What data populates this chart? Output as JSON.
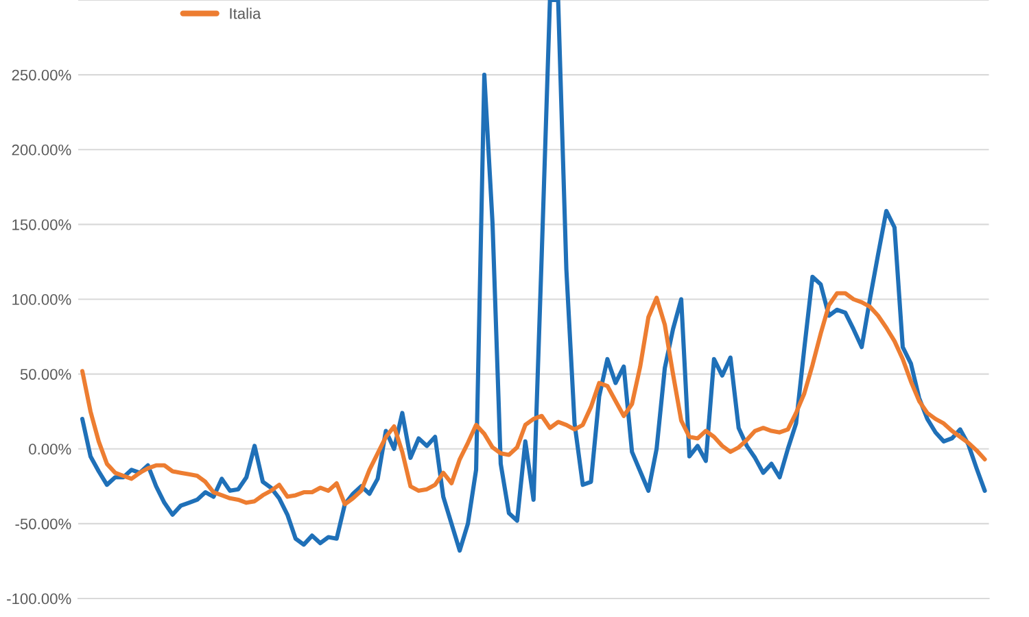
{
  "chart_data": {
    "type": "line",
    "categories": [
      null,
      null,
      null,
      null,
      null,
      null,
      null,
      null,
      null,
      null,
      null,
      null,
      null,
      null,
      null,
      null,
      null,
      null,
      null,
      null,
      null,
      null,
      null,
      null,
      null,
      null,
      null,
      null,
      null,
      null,
      null,
      null,
      null,
      null,
      null,
      null,
      null,
      null,
      null,
      null,
      null,
      null,
      null,
      null,
      null,
      null,
      null,
      null,
      null,
      null,
      null,
      null,
      null,
      null,
      null,
      null,
      null,
      null,
      null,
      null,
      null,
      null,
      null,
      null,
      null,
      null,
      null,
      null,
      null,
      null,
      null,
      null,
      null,
      null,
      null,
      null,
      null,
      null,
      null,
      null,
      null,
      null,
      null,
      null,
      null,
      null,
      null,
      null,
      null,
      null,
      null,
      null,
      null,
      null,
      null,
      null,
      null,
      null,
      null,
      null,
      null,
      null,
      null,
      null,
      null,
      null,
      null,
      null,
      null,
      null,
      null
    ],
    "series": [
      {
        "color": "#1f70b8",
        "values": [
          20,
          -5,
          -15,
          -24,
          -19,
          -19,
          -14,
          -16,
          -11,
          -25,
          -36,
          -44,
          -38,
          -36,
          -34,
          -29,
          -32,
          -20,
          -28,
          -27,
          -19,
          2,
          -22,
          -26,
          -33,
          -44,
          -60,
          -64,
          -58,
          -63,
          -59,
          -60,
          -37,
          -30,
          -25,
          -30,
          -20,
          12,
          0,
          24,
          -6,
          7,
          2,
          8,
          -32,
          -50,
          -68,
          -50,
          -14,
          250,
          151,
          -10,
          -43,
          -48,
          5,
          -34,
          130,
          300,
          300,
          120,
          17,
          -24,
          -22,
          35,
          60,
          44,
          55,
          -2,
          -15,
          -28,
          0,
          54,
          80,
          100,
          -5,
          2,
          -8,
          60,
          49,
          61,
          14,
          2,
          -6,
          -16,
          -10,
          -19,
          0,
          17,
          67,
          115,
          110,
          89,
          93,
          91,
          80,
          68,
          100,
          130,
          159,
          148,
          68,
          57,
          34,
          20,
          11,
          5,
          7,
          13,
          3,
          -13,
          -28
        ]
      },
      {
        "name": "Italia",
        "color": "#ed7d31",
        "values": [
          52,
          25,
          5,
          -10,
          -16,
          -18,
          -20,
          -16,
          -13,
          -11,
          -11,
          -15,
          -16,
          -17,
          -18,
          -22,
          -29,
          -31,
          -33,
          -34,
          -36,
          -35,
          -31,
          -28,
          -24,
          -32,
          -31,
          -29,
          -29,
          -26,
          -28,
          -23,
          -37,
          -33,
          -28,
          -14,
          -3,
          8,
          15,
          -2,
          -25,
          -28,
          -27,
          -24,
          -16,
          -23,
          -7,
          4,
          16,
          10,
          1,
          -3,
          -4,
          1,
          16,
          20,
          22,
          14,
          18,
          16,
          13,
          16,
          28,
          44,
          42,
          32,
          22,
          30,
          55,
          88,
          101,
          83,
          50,
          19,
          8,
          7,
          12,
          8,
          2,
          -2,
          1,
          6,
          12,
          14,
          12,
          11,
          13,
          24,
          37,
          56,
          77,
          96,
          104,
          104,
          100,
          98,
          95,
          89,
          81,
          72,
          60,
          45,
          32,
          24,
          20,
          17,
          12,
          8,
          4,
          -1,
          -7
        ]
      }
    ],
    "ylim": [
      -100,
      300
    ],
    "yticks": [
      {
        "value": -100,
        "label": "-100.00%"
      },
      {
        "value": -50,
        "label": "-50.00%"
      },
      {
        "value": 0,
        "label": "0.00%"
      },
      {
        "value": 50,
        "label": "50.00%"
      },
      {
        "value": 100,
        "label": "100.00%"
      },
      {
        "value": 150,
        "label": "150.00%"
      },
      {
        "value": 200,
        "label": "200.00%"
      },
      {
        "value": 250,
        "label": "250.00%"
      },
      {
        "value": 300,
        "label": null
      }
    ],
    "tick_labels": "y",
    "grid": "y",
    "legend": "top left"
  }
}
